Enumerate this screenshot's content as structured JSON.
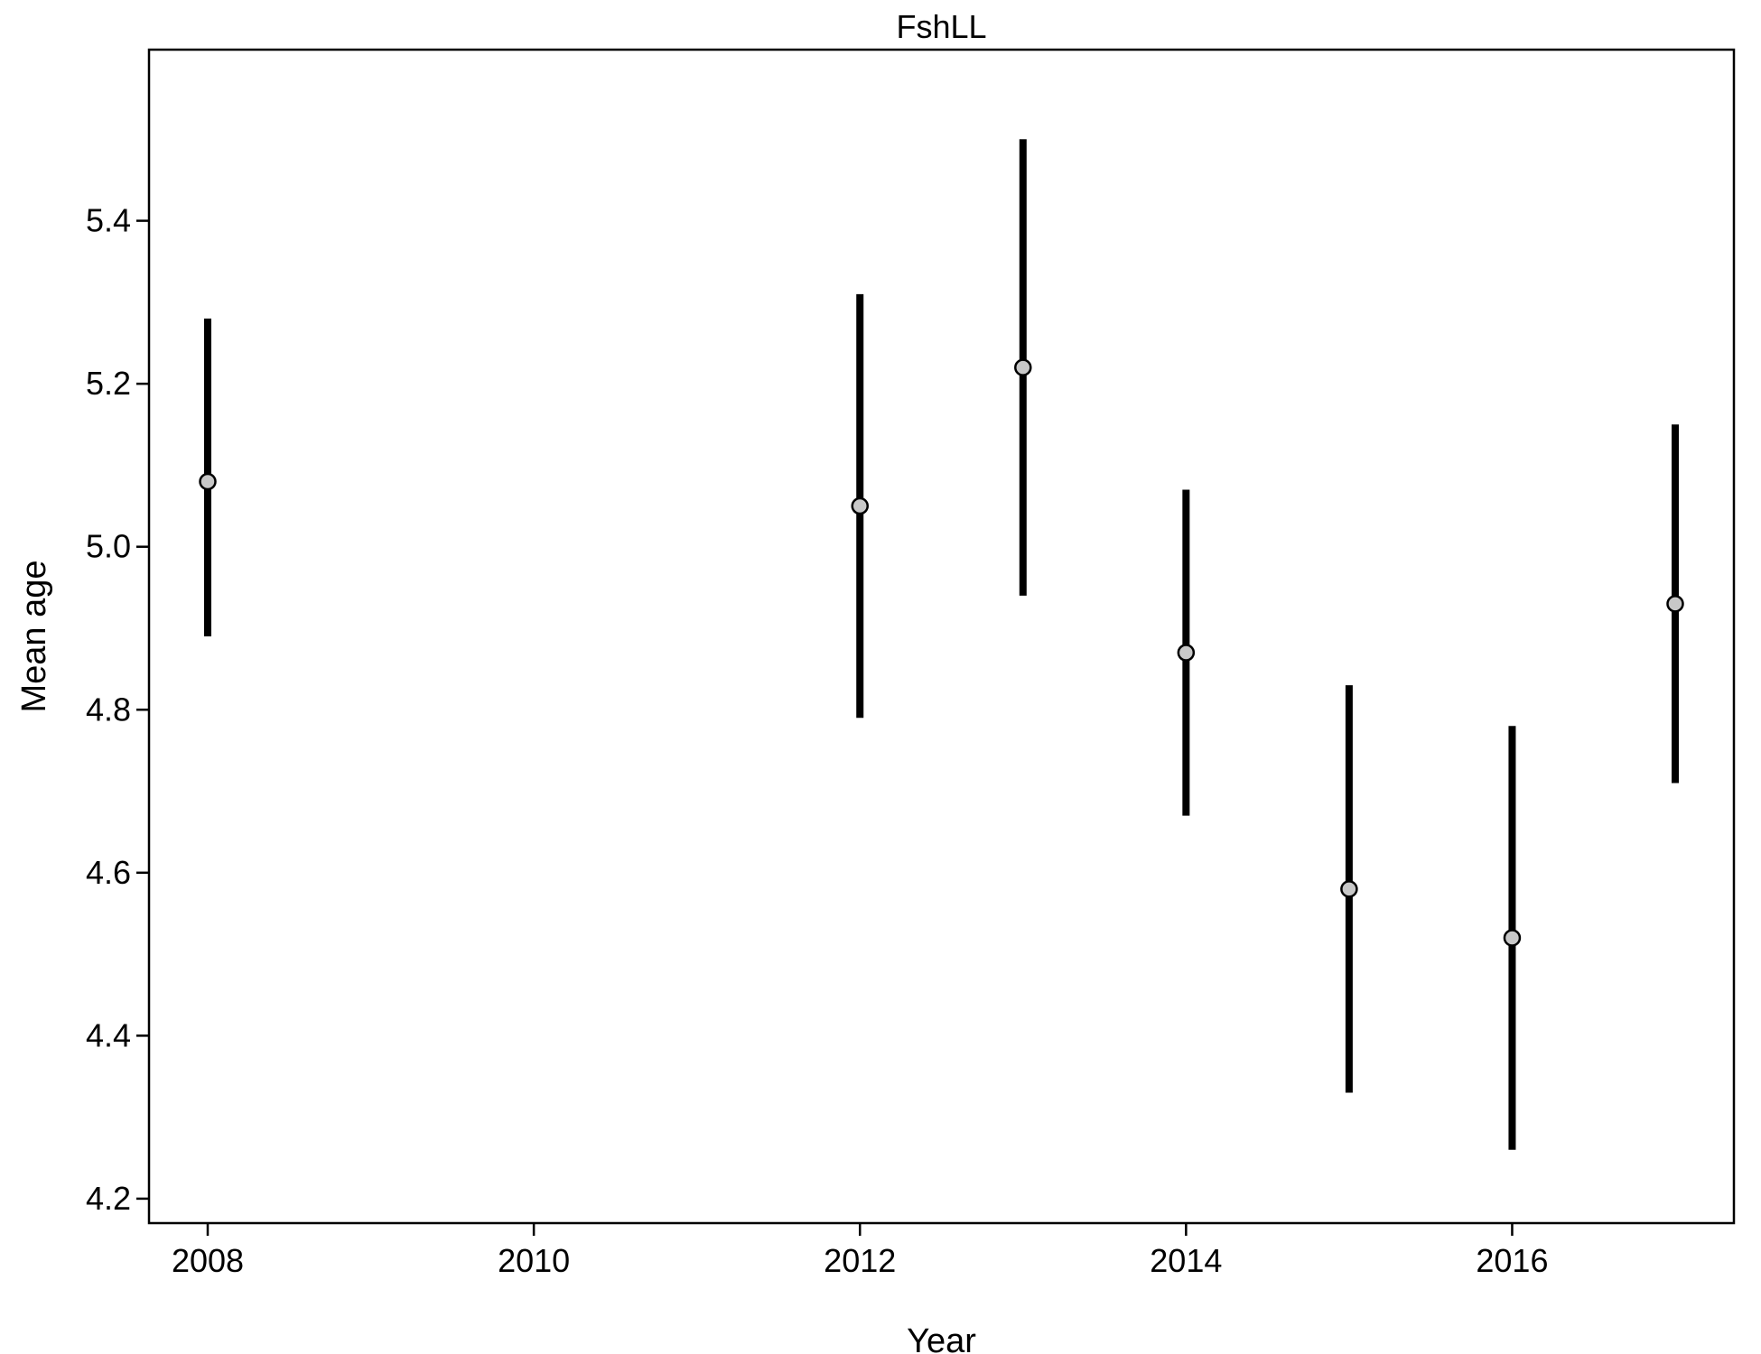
{
  "chart_data": {
    "type": "scatter",
    "title": "FshLL",
    "xlabel": "Year",
    "ylabel": "Mean age",
    "xlim": [
      2007.64,
      2017.36
    ],
    "ylim": [
      4.17,
      5.61
    ],
    "x_ticks": [
      2008,
      2010,
      2012,
      2014,
      2016
    ],
    "y_ticks": [
      4.2,
      4.4,
      4.6,
      4.8,
      5.0,
      5.2,
      5.4
    ],
    "grid": false,
    "series": [
      {
        "points": [
          {
            "x": 2008,
            "y": 5.08,
            "lower": 4.89,
            "upper": 5.28
          },
          {
            "x": 2012,
            "y": 5.05,
            "lower": 4.79,
            "upper": 5.31
          },
          {
            "x": 2013,
            "y": 5.22,
            "lower": 4.94,
            "upper": 5.5
          },
          {
            "x": 2014,
            "y": 4.87,
            "lower": 4.67,
            "upper": 5.07
          },
          {
            "x": 2015,
            "y": 4.58,
            "lower": 4.33,
            "upper": 4.83
          },
          {
            "x": 2016,
            "y": 4.52,
            "lower": 4.26,
            "upper": 4.78
          },
          {
            "x": 2017,
            "y": 4.93,
            "lower": 4.71,
            "upper": 5.15
          }
        ]
      }
    ],
    "colors": {
      "marker_fill": "#c8c8c8",
      "marker_stroke": "#000000",
      "error_bar": "#000000",
      "frame": "#000000"
    }
  }
}
